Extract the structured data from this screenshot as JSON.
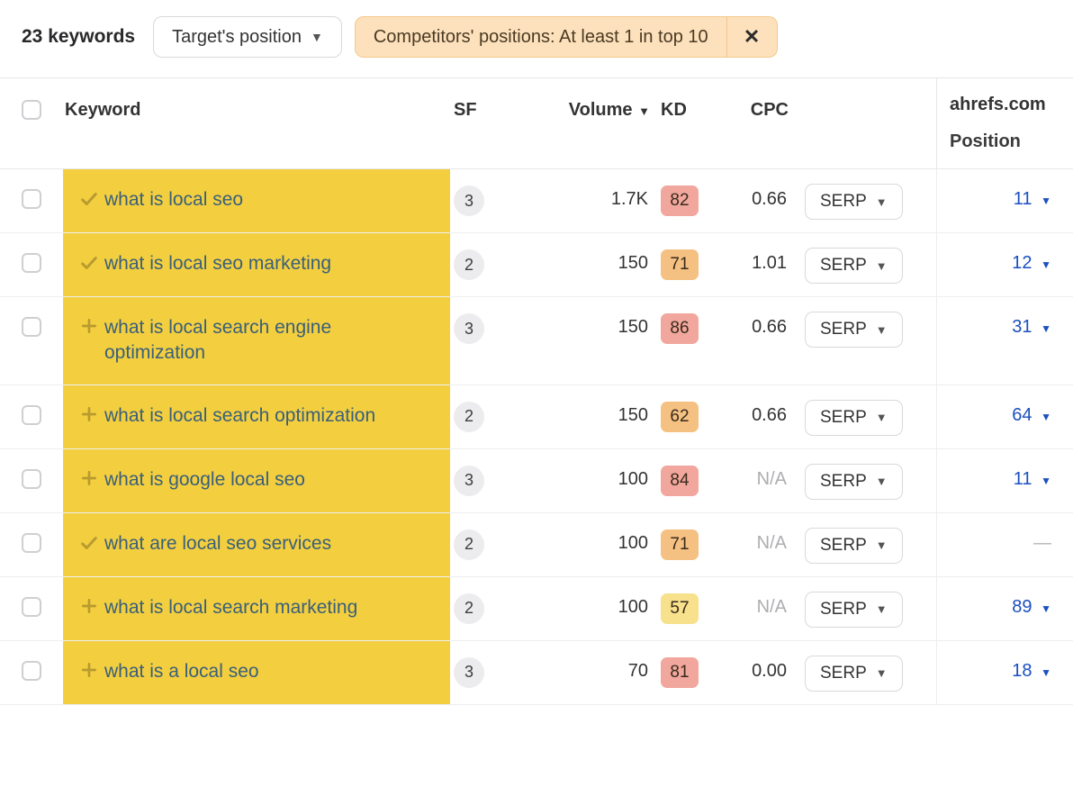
{
  "header": {
    "count_label": "23 keywords",
    "target_filter_label": "Target's position",
    "competitors_filter_label": "Competitors' positions: At least 1 in top 10"
  },
  "columns": {
    "keyword": "Keyword",
    "sf": "SF",
    "volume": "Volume",
    "kd": "KD",
    "cpc": "CPC",
    "domain": "ahrefs.com",
    "position": "Position"
  },
  "serp_label": "SERP",
  "kd_colors": {
    "high": "#f1a79d",
    "mid": "#f4c182",
    "low": "#f7e18c"
  },
  "icon_colors": {
    "check": "#b89a2e",
    "plus": "#b89a2e"
  },
  "highlight_bg": "#f3cf3f",
  "rows": [
    {
      "icon": "check",
      "keyword": "what is local seo",
      "sf": "3",
      "volume": "1.7K",
      "kd": "82",
      "kd_level": "high",
      "cpc": "0.66",
      "cpc_na": false,
      "position": "11",
      "dash": false
    },
    {
      "icon": "check",
      "keyword": "what is local seo marketing",
      "sf": "2",
      "volume": "150",
      "kd": "71",
      "kd_level": "mid",
      "cpc": "1.01",
      "cpc_na": false,
      "position": "12",
      "dash": false
    },
    {
      "icon": "plus",
      "keyword": "what is local search engine optimization",
      "sf": "3",
      "volume": "150",
      "kd": "86",
      "kd_level": "high",
      "cpc": "0.66",
      "cpc_na": false,
      "position": "31",
      "dash": false
    },
    {
      "icon": "plus",
      "keyword": "what is local search optimization",
      "sf": "2",
      "volume": "150",
      "kd": "62",
      "kd_level": "mid",
      "cpc": "0.66",
      "cpc_na": false,
      "position": "64",
      "dash": false
    },
    {
      "icon": "plus",
      "keyword": "what is google local seo",
      "sf": "3",
      "volume": "100",
      "kd": "84",
      "kd_level": "high",
      "cpc": "N/A",
      "cpc_na": true,
      "position": "11",
      "dash": false
    },
    {
      "icon": "check",
      "keyword": "what are local seo services",
      "sf": "2",
      "volume": "100",
      "kd": "71",
      "kd_level": "mid",
      "cpc": "N/A",
      "cpc_na": true,
      "position": "—",
      "dash": true
    },
    {
      "icon": "plus",
      "keyword": "what is local search marketing",
      "sf": "2",
      "volume": "100",
      "kd": "57",
      "kd_level": "low",
      "cpc": "N/A",
      "cpc_na": true,
      "position": "89",
      "dash": false
    },
    {
      "icon": "plus",
      "keyword": "what is a local seo",
      "sf": "3",
      "volume": "70",
      "kd": "81",
      "kd_level": "high",
      "cpc": "0.00",
      "cpc_na": false,
      "position": "18",
      "dash": false
    }
  ]
}
